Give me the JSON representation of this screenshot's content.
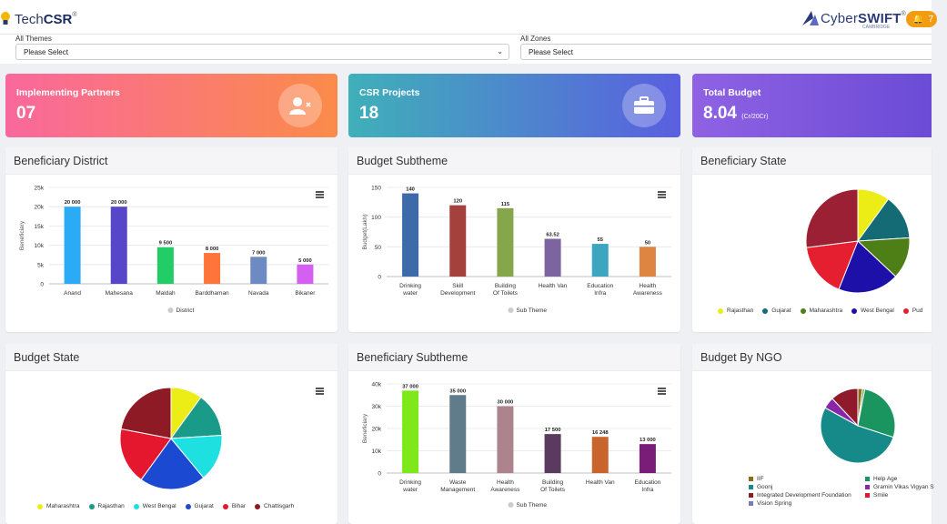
{
  "brand": {
    "left_name": "Tech",
    "left_name_bold": "CSR",
    "left_reg": "®",
    "right_name": "Cyber",
    "right_name_bold": "SWIFT",
    "right_reg": "®",
    "right_sub": "CAMBRIDGE",
    "notif_count": "7"
  },
  "filters": {
    "themes": {
      "label": "All Themes",
      "value": "Please Select"
    },
    "zones": {
      "label": "All Zones",
      "value": "Please Select"
    }
  },
  "stats": [
    {
      "title": "Implementing Partners",
      "value": "07",
      "unit": "",
      "icon": "user-remove-icon",
      "gradient": [
        "#f9689c",
        "#fb8b4a"
      ]
    },
    {
      "title": "CSR Projects",
      "value": "18",
      "unit": "",
      "icon": "briefcase-icon",
      "gradient": [
        "#3fb0b9",
        "#5a5fe0"
      ]
    },
    {
      "title": "Total Budget",
      "value": "8.04",
      "unit": "(Cr/20Cr)",
      "icon": "",
      "gradient": [
        "#8f62e3",
        "#6b4bd6"
      ]
    }
  ],
  "cards": {
    "beneficiary_district": "Beneficiary District",
    "budget_subtheme": "Budget Subtheme",
    "beneficiary_state": "Beneficiary State",
    "budget_state": "Budget State",
    "beneficiary_subtheme": "Beneficiary Subtheme",
    "budget_by_ngo": "Budget By NGO"
  },
  "chart_data": [
    {
      "id": "beneficiary-district",
      "type": "bar",
      "categories": [
        "Anand",
        "Mahesana",
        "Maldah",
        "Barddhaman",
        "Navada",
        "Bikaner"
      ],
      "values": [
        20000,
        20000,
        9500,
        8000,
        7000,
        5000
      ],
      "labels": [
        "20 000",
        "20 000",
        "9 500",
        "8 000",
        "7 000",
        "5 000"
      ],
      "colors": [
        "#2baaf5",
        "#5747c8",
        "#22cc66",
        "#ff7439",
        "#6e8ac2",
        "#d55ff0"
      ],
      "ylabel": "Beneficiary",
      "ylim": [
        0,
        25000
      ],
      "yticks": [
        0,
        5000,
        10000,
        15000,
        20000,
        25000
      ],
      "ytick_labels": [
        "0",
        "5k",
        "10k",
        "15k",
        "20k",
        "25k"
      ],
      "legend": "District",
      "grid": true
    },
    {
      "id": "budget-subtheme",
      "type": "bar",
      "categories": [
        "Drinking water",
        "Skill Development",
        "Building Of Toilets",
        "Health Van",
        "Education Infra",
        "Health Awareness"
      ],
      "values": [
        140,
        120,
        115,
        63.52,
        55,
        50
      ],
      "labels": [
        "140",
        "120",
        "115",
        "63.52",
        "55",
        "50"
      ],
      "colors": [
        "#3d6aa8",
        "#a4413d",
        "#85a64a",
        "#7c64a0",
        "#3ca5c0",
        "#de8541"
      ],
      "ylabel": "Budget(Lakh)",
      "ylim": [
        0,
        150
      ],
      "yticks": [
        0,
        50,
        100,
        150
      ],
      "ytick_labels": [
        "0",
        "50",
        "100",
        "150"
      ],
      "legend": "Sub Theme",
      "grid": true
    },
    {
      "id": "beneficiary-state",
      "type": "pie",
      "values": [
        10,
        14,
        13,
        19,
        17,
        27
      ],
      "colors": [
        "#ecec16",
        "#146a75",
        "#4e7f16",
        "#1d10a8",
        "#e51e30",
        "#9b2034"
      ],
      "legend": [
        "Rajasthan",
        "Gujarat",
        "Maharashtra",
        "West Bengal",
        "Pud"
      ],
      "legend_colors": [
        "#ecec16",
        "#146a75",
        "#4e7f16",
        "#1d10a8",
        "#e51e30"
      ]
    },
    {
      "id": "budget-state",
      "type": "pie",
      "values": [
        10,
        14,
        15,
        21,
        18,
        22
      ],
      "colors": [
        "#ecec16",
        "#1a9b8a",
        "#1fe0e0",
        "#1c49d1",
        "#e5172e",
        "#8e1a26"
      ],
      "legend": [
        "Maharashtra",
        "Rajasthan",
        "West Bengal",
        "Gujarat",
        "Bihar",
        "Chattisgarh"
      ],
      "legend_colors": [
        "#ecec16",
        "#1a9b8a",
        "#1fe0e0",
        "#1c49d1",
        "#e5172e",
        "#8e1a26"
      ]
    },
    {
      "id": "beneficiary-subtheme",
      "type": "bar",
      "categories": [
        "Drinking water",
        "Waste Management",
        "Health Awareness",
        "Building Of Toilets",
        "Health Van",
        "Education Infra"
      ],
      "values": [
        37000,
        35000,
        30000,
        17500,
        16248,
        13000
      ],
      "labels": [
        "37 000",
        "35 000",
        "30 000",
        "17 500",
        "16 248",
        "13 000"
      ],
      "colors": [
        "#7ee81a",
        "#607b8a",
        "#ad848e",
        "#5a3a5e",
        "#c9642c",
        "#7a1d78"
      ],
      "ylabel": "Beneficiary",
      "ylim": [
        0,
        40000
      ],
      "yticks": [
        0,
        10000,
        20000,
        30000,
        40000
      ],
      "ytick_labels": [
        "0",
        "10k",
        "20k",
        "30k",
        "40k"
      ],
      "legend": "Sub Theme",
      "grid": true
    },
    {
      "id": "budget-by-ngo",
      "type": "pie",
      "values": [
        2,
        1,
        27,
        53,
        5,
        12
      ],
      "colors": [
        "#8a6d1c",
        "#6ea24f",
        "#1a9560",
        "#168a88",
        "#8a25a8",
        "#8e1a2b"
      ],
      "legend": [
        "IIF",
        "Help Age",
        "Goonj",
        "Gramin Vikas Vigyan S",
        "Integrated Development Foundation",
        "Smile",
        "Vision Spring"
      ],
      "legend_colors": [
        "#8a6d1c",
        "#1a9560",
        "#168a88",
        "#8a25a8",
        "#8e1a2b",
        "#e5172e",
        "#7a7ab8"
      ]
    }
  ]
}
